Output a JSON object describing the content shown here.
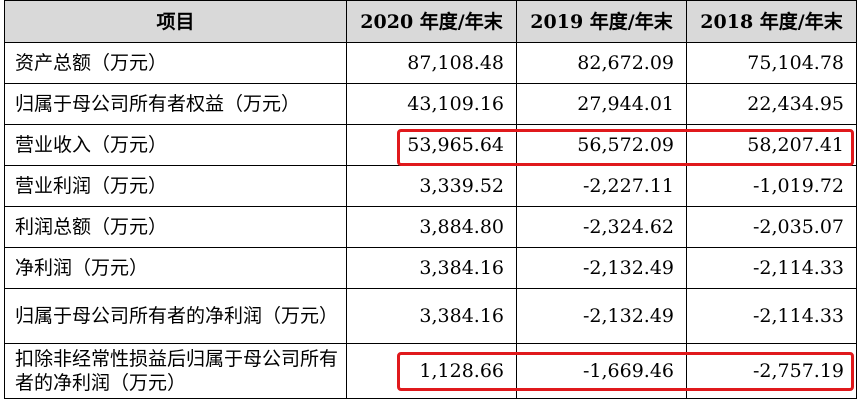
{
  "table": {
    "headers": [
      "项目",
      "2020 年度/年末",
      "2019 年度/年末",
      "2018 年度/年末"
    ],
    "rows": [
      {
        "label": "资产总额（万元）",
        "values": [
          "87,108.48",
          "82,672.09",
          "75,104.78"
        ]
      },
      {
        "label": "归属于母公司所有者权益（万元）",
        "values": [
          "43,109.16",
          "27,944.01",
          "22,434.95"
        ]
      },
      {
        "label": "营业收入（万元）",
        "values": [
          "53,965.64",
          "56,572.09",
          "58,207.41"
        ]
      },
      {
        "label": "营业利润（万元）",
        "values": [
          "3,339.52",
          "-2,227.11",
          "-1,019.72"
        ]
      },
      {
        "label": "利润总额（万元）",
        "values": [
          "3,884.80",
          "-2,324.62",
          "-2,035.07"
        ]
      },
      {
        "label": "净利润（万元）",
        "values": [
          "3,384.16",
          "-2,132.49",
          "-2,114.33"
        ]
      },
      {
        "label": "归属于母公司所有者的净利润（万元）",
        "values": [
          "3,384.16",
          "-2,132.49",
          "-2,114.33"
        ]
      },
      {
        "label": "扣除非经常性损益后归属于母公司所有者的净利润（万元）",
        "values": [
          "1,128.66",
          "-1,669.46",
          "-2,757.19"
        ]
      }
    ]
  },
  "highlight_color": "#e0191c",
  "header_bg": "#d9d9d9"
}
